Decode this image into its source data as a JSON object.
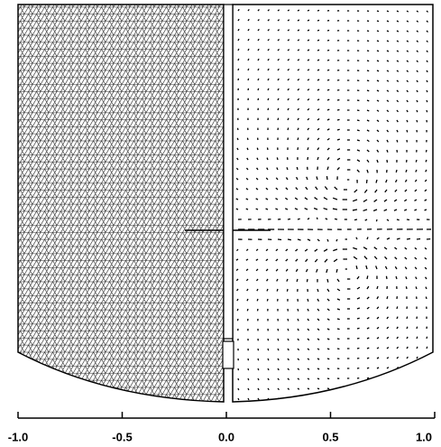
{
  "chart_data": {
    "type": "flow_field",
    "xlim": [
      -1,
      1
    ],
    "xticks": [
      {
        "value": -1,
        "label": "-1.0"
      },
      -0.5,
      {
        "value": 0,
        "label": "0.0"
      },
      0.5,
      {
        "value": 1,
        "label": "1.0"
      }
    ]
  }
}
